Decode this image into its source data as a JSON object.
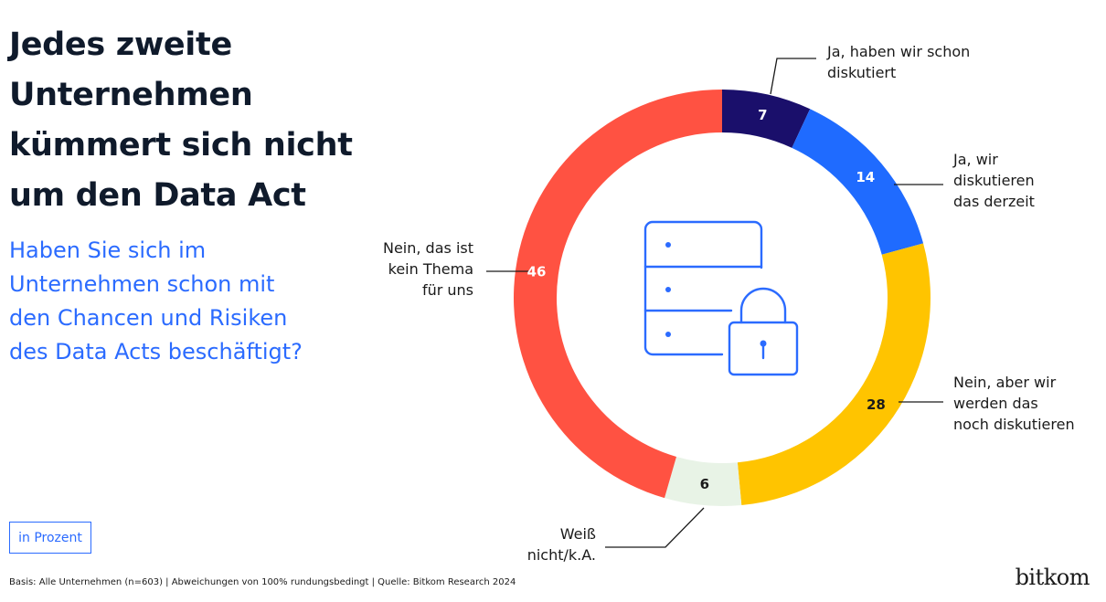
{
  "header": {
    "title_lines": [
      "Jedes zweite",
      "Unternehmen",
      "kümmert sich nicht",
      "um den Data Act"
    ],
    "question_lines": [
      "Haben Sie sich im",
      "Unternehmen schon mit",
      "den Chancen und Risiken",
      "des Data Acts beschäftigt?"
    ]
  },
  "unit_label": "in Prozent",
  "footnote": "Basis: Alle Unternehmen (n=603) | Abweichungen von 100% rundungsbedingt | Quelle: Bitkom Research 2024",
  "logo": "bitkom",
  "center_icon": "server-lock-icon",
  "chart_data": {
    "type": "pie",
    "donut": true,
    "unit": "in Prozent",
    "slices": [
      {
        "label_lines": [
          "Ja, haben wir schon",
          "diskutiert"
        ],
        "value": 7,
        "color": "#1a0f6b",
        "value_color": "#ffffff"
      },
      {
        "label_lines": [
          "Ja, wir",
          "diskutieren",
          "das derzeit"
        ],
        "value": 14,
        "color": "#1f6bff",
        "value_color": "#ffffff"
      },
      {
        "label_lines": [
          "Nein, aber wir",
          "werden das",
          "noch diskutieren"
        ],
        "value": 28,
        "color": "#ffc400",
        "value_color": "#1a1a1a"
      },
      {
        "label_lines": [
          "Weiß",
          "nicht/k.A."
        ],
        "value": 6,
        "color": "#e8f3e6",
        "value_color": "#1a1a1a"
      },
      {
        "label_lines": [
          "Nein, das ist",
          "kein Thema",
          "für uns"
        ],
        "value": 46,
        "color": "#ff5242",
        "value_color": "#ffffff"
      }
    ]
  }
}
